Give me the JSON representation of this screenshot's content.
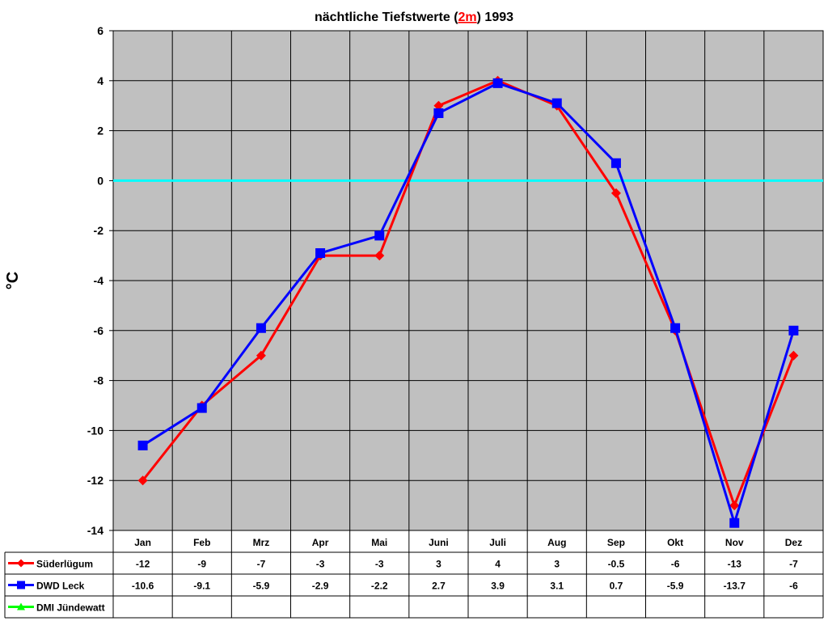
{
  "chart_data": {
    "type": "line",
    "title_before": "nächtliche Tiefstwerte (",
    "title_highlight": "2m",
    "title_after": ") 1993",
    "ylabel": "°C",
    "xlabel": "",
    "ylim": [
      -14,
      6
    ],
    "yticks": [
      6,
      4,
      2,
      0,
      -2,
      -4,
      -6,
      -8,
      -10,
      -12,
      -14
    ],
    "grid": true,
    "zero_line_color": "#00ffff",
    "plot_background": "#c0c0c0",
    "categories": [
      "Jan",
      "Feb",
      "Mrz",
      "Apr",
      "Mai",
      "Juni",
      "Juli",
      "Aug",
      "Sep",
      "Okt",
      "Nov",
      "Dez"
    ],
    "series": [
      {
        "name": "Süderlügum",
        "color": "#ff0000",
        "marker": "diamond",
        "values": [
          -12,
          -9,
          -7,
          -3,
          -3,
          3,
          4,
          3,
          -0.5,
          -6,
          -13,
          -7
        ],
        "labels": [
          "-12",
          "-9",
          "-7",
          "-3",
          "-3",
          "3",
          "4",
          "3",
          "-0.5",
          "-6",
          "-13",
          "-7"
        ]
      },
      {
        "name": "DWD Leck",
        "color": "#0000ff",
        "marker": "square",
        "values": [
          -10.6,
          -9.1,
          -5.9,
          -2.9,
          -2.2,
          2.7,
          3.9,
          3.1,
          0.7,
          -5.9,
          -13.7,
          -6
        ],
        "labels": [
          "-10.6",
          "-9.1",
          "-5.9",
          "-2.9",
          "-2.2",
          "2.7",
          "3.9",
          "3.1",
          "0.7",
          "-5.9",
          "-13.7",
          "-6"
        ]
      },
      {
        "name": "DMI Jündewatt",
        "color": "#00ff00",
        "marker": "triangle",
        "values": [
          null,
          null,
          null,
          null,
          null,
          null,
          null,
          null,
          null,
          null,
          null,
          null
        ],
        "labels": [
          "",
          "",
          "",
          "",
          "",
          "",
          "",
          "",
          "",
          "",
          "",
          ""
        ]
      }
    ],
    "legend": "data-table"
  }
}
